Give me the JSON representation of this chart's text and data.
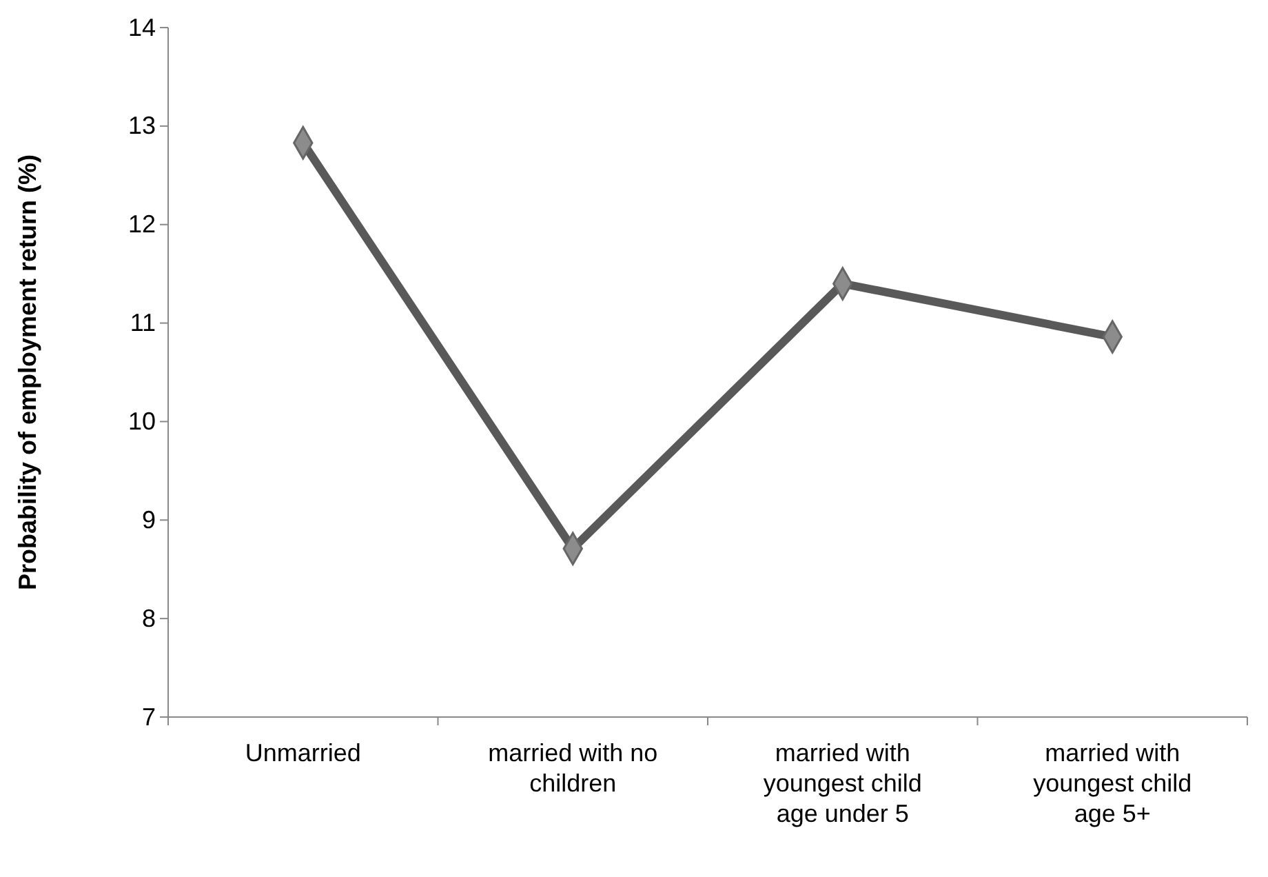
{
  "chart_data": {
    "type": "line",
    "ylabel": "Probability of employment return (%)",
    "categories": [
      "Unmarried",
      "married with no children",
      "married with youngest child age under 5",
      "married with youngest child age 5+"
    ],
    "series": [
      {
        "color": "#595959",
        "values": [
          12.83,
          8.71,
          11.4,
          10.86
        ]
      }
    ],
    "ylim": [
      7,
      14
    ],
    "yticks": [
      7,
      8,
      9,
      10,
      11,
      12,
      13,
      14
    ],
    "grid": false,
    "marker": "diamond",
    "line_style": "solid"
  }
}
